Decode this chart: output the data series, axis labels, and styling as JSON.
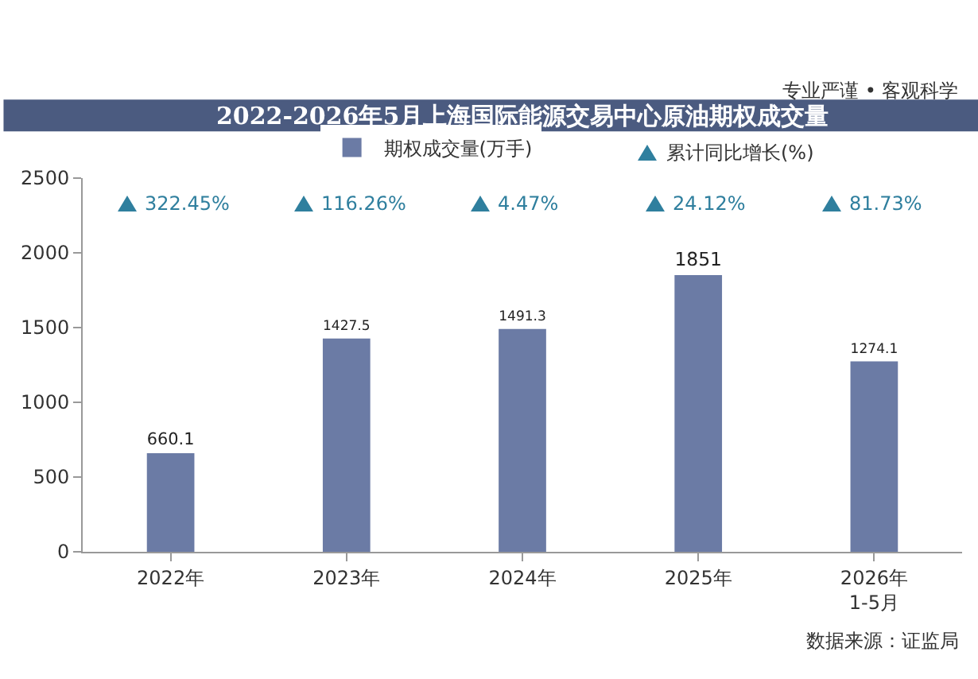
{
  "chart_data": {
    "type": "bar",
    "title": "2022-2026年5月上海国际能源交易中心原油期权成交量",
    "categories": [
      "2022年",
      "2023年",
      "2024年",
      "2025年",
      "2026年\n1-5月"
    ],
    "series": [
      {
        "name": "期权成交量(万手)",
        "color": "#6b7ba5",
        "values": [
          660.1,
          1427.5,
          1491.3,
          1851,
          1274.1
        ]
      }
    ],
    "data_labels": true,
    "ylim": [
      0,
      2500
    ],
    "yticks": [
      0,
      500,
      1000,
      1500,
      2000,
      2500
    ],
    "grid": false,
    "legend": "top",
    "annotations": [
      "专业严谨 • 客观科学",
      "数据来源：证监局",
      "累计同比增长(%)",
      "322.45%",
      "116.26%",
      "4.47%",
      "24.12%",
      "81.73%"
    ]
  }
}
